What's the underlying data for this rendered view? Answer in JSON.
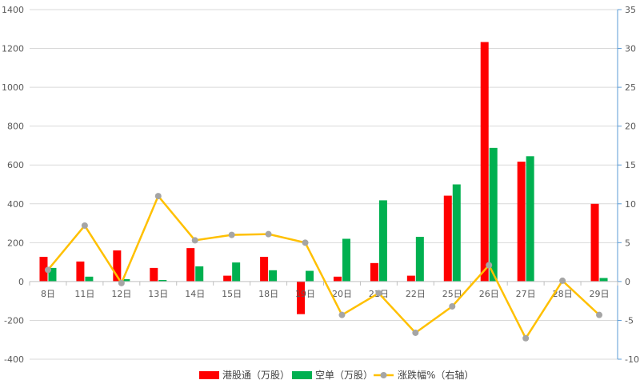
{
  "chart_data": {
    "type": "bar",
    "categories": [
      "8日",
      "11日",
      "12日",
      "13日",
      "14日",
      "15日",
      "18日",
      "19日",
      "20日",
      "21日",
      "22日",
      "25日",
      "26日",
      "27日",
      "28日",
      "29日"
    ],
    "series": [
      {
        "name": "港股通（万股）",
        "kind": "bar",
        "axis": "left",
        "color": "#ff0000",
        "values": [
          127,
          103,
          160,
          70,
          172,
          30,
          127,
          -168,
          25,
          95,
          30,
          442,
          1233,
          617,
          0,
          400
        ]
      },
      {
        "name": "空单（万股）",
        "kind": "bar",
        "axis": "left",
        "color": "#00b050",
        "values": [
          70,
          25,
          12,
          8,
          78,
          98,
          58,
          55,
          220,
          418,
          230,
          500,
          688,
          645,
          0,
          18
        ]
      },
      {
        "name": "涨跌幅%（右轴）",
        "kind": "line",
        "axis": "right",
        "color": "#ffc000",
        "marker_color": "#a5a5a5",
        "values": [
          1.5,
          7.2,
          -0.2,
          11.0,
          5.3,
          6.0,
          6.1,
          5.0,
          -4.3,
          -1.5,
          -6.6,
          -3.2,
          2.1,
          -7.3,
          0.1,
          -4.3
        ]
      }
    ],
    "y_left": {
      "min": -400,
      "max": 1400,
      "step": 200,
      "ticks": [
        "-400",
        "-200",
        "0",
        "200",
        "400",
        "600",
        "800",
        "1000",
        "1200",
        "1400"
      ]
    },
    "y_right": {
      "min": -10,
      "max": 35,
      "step": 5,
      "ticks": [
        "-10",
        "-5",
        "0",
        "5",
        "10",
        "15",
        "20",
        "25",
        "30",
        "35"
      ]
    },
    "grid": true,
    "legend_position": "bottom",
    "title": "",
    "xlabel": "",
    "ylabel": ""
  }
}
